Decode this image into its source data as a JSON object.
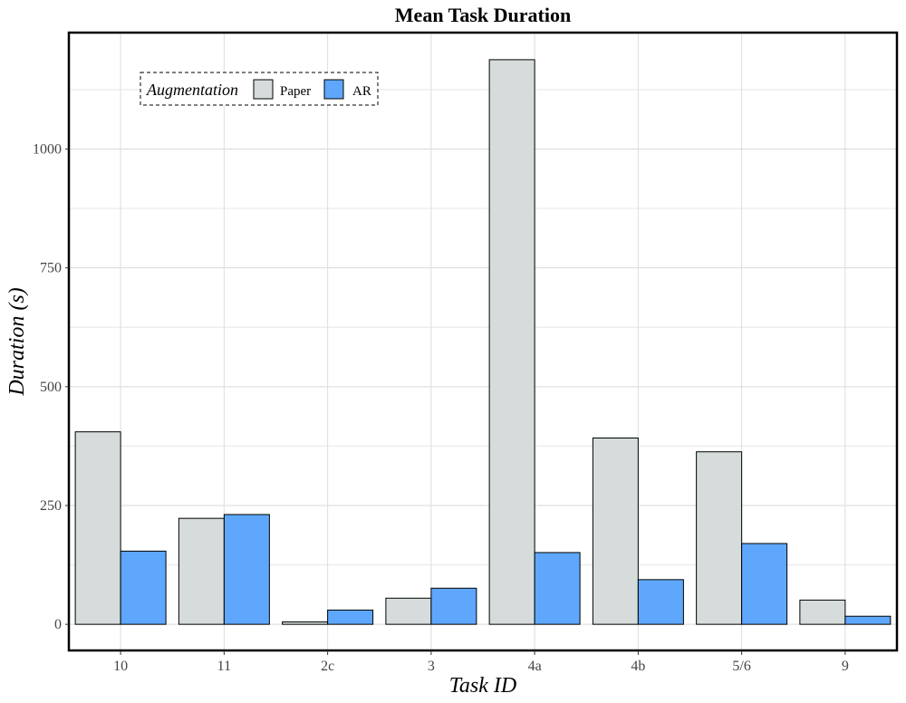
{
  "chart_data": {
    "type": "bar",
    "title": "Mean Task Duration",
    "xlabel": "Task ID",
    "ylabel": "Duration (s)",
    "categories": [
      "10",
      "11",
      "2c",
      "3",
      "4a",
      "4b",
      "5/6",
      "9"
    ],
    "series": [
      {
        "name": "Paper",
        "color": "#d5dcdb",
        "values": [
          405,
          223,
          5,
          55,
          1188,
          392,
          363,
          51
        ]
      },
      {
        "name": "AR",
        "color": "#5ea7fc",
        "values": [
          154,
          231,
          30,
          76,
          151,
          94,
          170,
          17
        ]
      }
    ],
    "ylim": [
      -55,
      1245
    ],
    "yticks": [
      0,
      250,
      500,
      750,
      1000
    ],
    "grid": true,
    "legend": {
      "title": "Augmentation",
      "position": "top-left"
    }
  }
}
